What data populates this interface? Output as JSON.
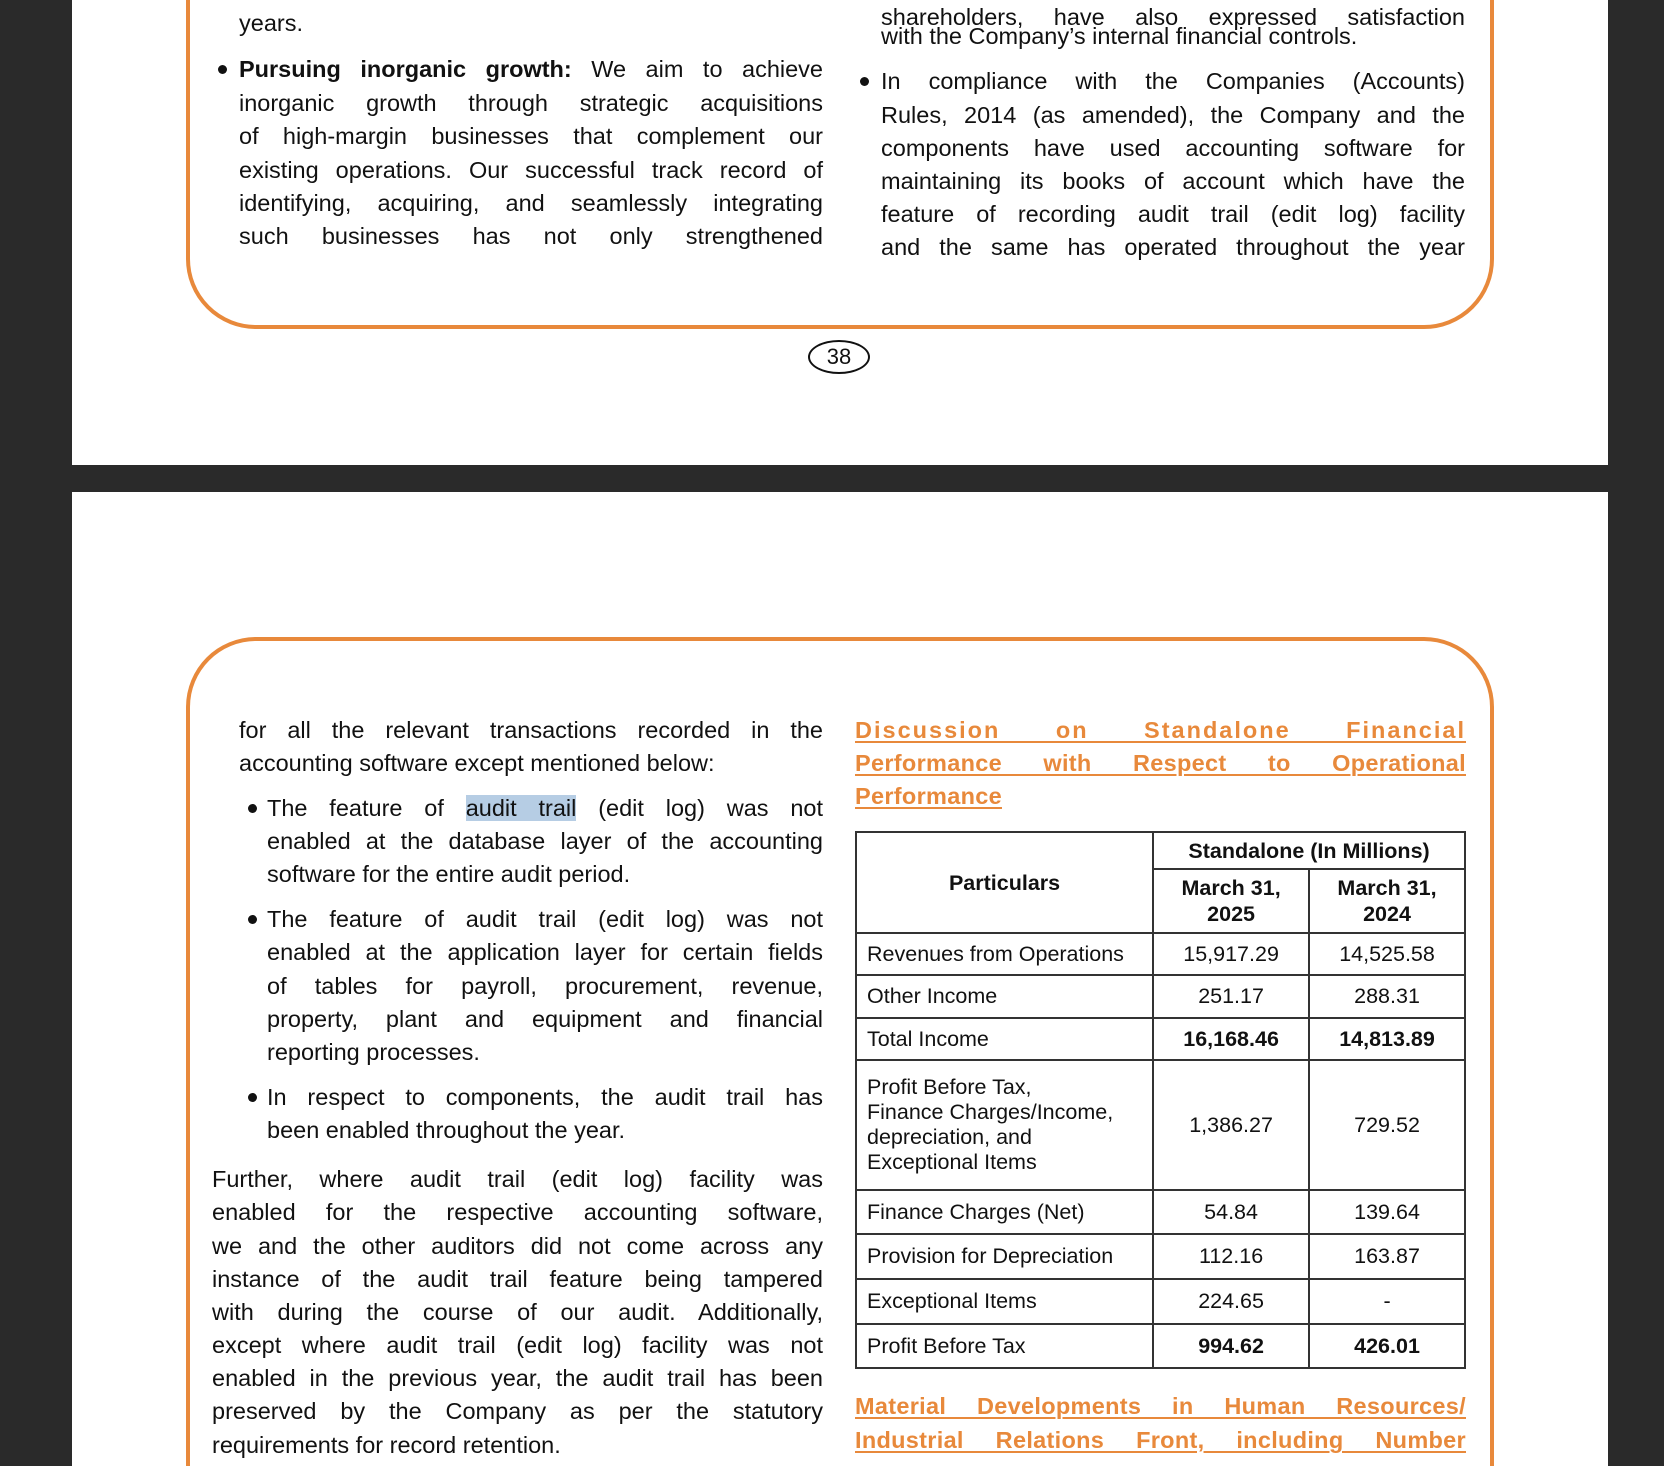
{
  "page1": {
    "left": {
      "lines": [
        "years.",
        "Pursuing inorganic growth:",
        " We aim to achieve",
        "inorganic growth through strategic acquisitions",
        "of high-margin businesses that complement our",
        "existing operations. Our successful track record of",
        "identifying, acquiring, and seamlessly integrating",
        "such businesses has not only strengthened"
      ]
    },
    "right": {
      "lines": [
        "shareholders, have also expressed satisfaction",
        "with the Company’s internal financial controls.",
        "In compliance with the Companies (Accounts)",
        "Rules, 2014 (as amended), the Company and the",
        "components have used accounting software for",
        "maintaining its books of account which have the",
        "feature of recording audit trail (edit log) facility",
        "and the same has operated throughout the year"
      ]
    },
    "page_number": "38"
  },
  "page2": {
    "left": {
      "intro": [
        "for all the relevant transactions recorded in the",
        "accounting software except mentioned below:"
      ],
      "bullet1": [
        "The feature of ",
        "audit trail",
        " (edit log) was not",
        "enabled at the database layer of the accounting",
        "software for the entire audit period."
      ],
      "bullet2": [
        "The feature of audit trail (edit log) was not",
        "enabled at the application layer for certain fields",
        "of tables for payroll, procurement, revenue,",
        "property, plant and equipment and financial",
        "reporting processes."
      ],
      "bullet3": [
        "In respect to components, the audit trail has",
        "been enabled throughout the year."
      ],
      "para": [
        "Further, where audit trail (edit log) facility was",
        "enabled for the respective accounting software,",
        "we and the other auditors did not come across any",
        "instance of the audit trail feature being tampered",
        "with during the course of our audit. Additionally,",
        "except where audit trail (edit log) facility was not",
        "enabled in the previous year, the audit trail has been",
        "preserved by the Company as per the statutory",
        "requirements for record retention."
      ]
    },
    "right": {
      "heading1": [
        "Discussion on Standalone Financial",
        "Performance with Respect to Operational",
        "Performance"
      ],
      "table": {
        "header_particulars": "Particulars",
        "header_group": "Standalone (In Millions)",
        "header_col1": [
          "March 31,",
          "2025"
        ],
        "header_col2": [
          "March 31,",
          "2024"
        ],
        "rows": [
          {
            "label": "Revenues from Operations",
            "v2025": "15,917.29",
            "v2024": "14,525.58",
            "bold": false
          },
          {
            "label": "Other Income",
            "v2025": "251.17",
            "v2024": "288.31",
            "bold": false
          },
          {
            "label": "Total Income",
            "v2025": "16,168.46",
            "v2024": "14,813.89",
            "bold": true
          },
          {
            "label": "Profit Before Tax, Finance Charges/Income, depreciation, and Exceptional Items",
            "label_lines": [
              "Profit Before Tax,",
              "Finance Charges/Income,",
              "depreciation, and",
              "Exceptional Items"
            ],
            "v2025": "1,386.27",
            "v2024": "729.52",
            "bold": false
          },
          {
            "label": "Finance Charges (Net)",
            "v2025": "54.84",
            "v2024": "139.64",
            "bold": false
          },
          {
            "label": "Provision for Depreciation",
            "v2025": "112.16",
            "v2024": "163.87",
            "bold": false
          },
          {
            "label": "Exceptional Items",
            "v2025": "224.65",
            "v2024": "-",
            "bold": false
          },
          {
            "label": "Profit Before Tax",
            "v2025": "994.62",
            "v2024": "426.01",
            "bold": true
          }
        ]
      },
      "heading2": [
        "Material Developments in Human Resources/",
        "Industrial Relations Front, including Number"
      ]
    }
  },
  "colors": {
    "accent": "#e8893b",
    "background": "#2a2a2a",
    "highlight": "#b6cde4"
  }
}
